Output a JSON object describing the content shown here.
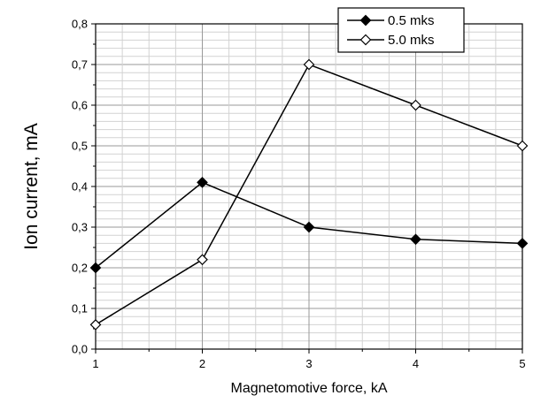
{
  "chart_data": {
    "type": "line",
    "xlabel": "Magnetomotive force, kA",
    "ylabel": "Ion current, mA",
    "xlim": [
      1,
      5
    ],
    "ylim": [
      0,
      0.8
    ],
    "x_ticks": [
      "1",
      "2",
      "3",
      "4",
      "5"
    ],
    "y_ticks": [
      "0,0",
      "0,1",
      "0,2",
      "0,3",
      "0,4",
      "0,5",
      "0,6",
      "0,7",
      "0,8"
    ],
    "grid": true,
    "legend_position": "top-right",
    "x": [
      1,
      2,
      3,
      4,
      5
    ],
    "series": [
      {
        "name": "0.5 mks",
        "marker": "filled-diamond",
        "color": "#000000",
        "values": [
          0.2,
          0.41,
          0.3,
          0.27,
          0.26
        ]
      },
      {
        "name": "5.0 mks",
        "marker": "open-diamond",
        "color": "#000000",
        "values": [
          0.06,
          0.22,
          0.7,
          0.6,
          0.5
        ]
      }
    ]
  }
}
